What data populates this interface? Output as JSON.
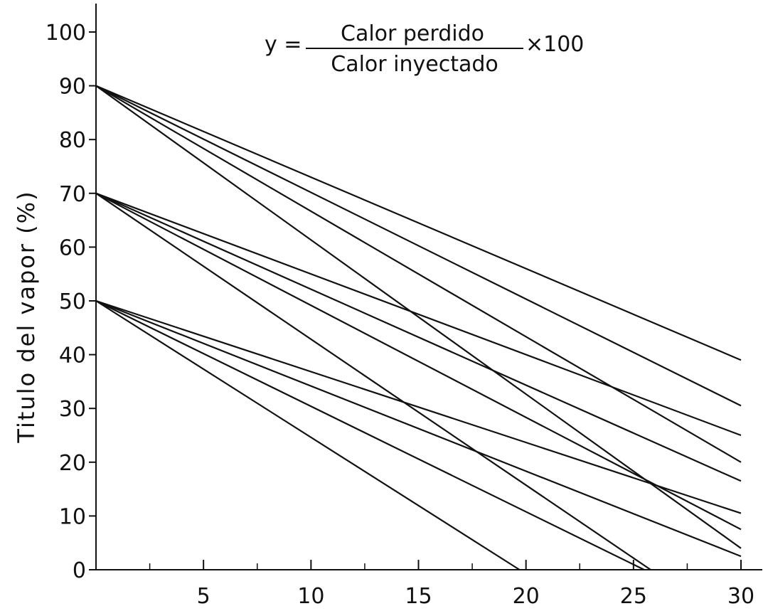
{
  "chart_data": {
    "type": "line",
    "title": "",
    "ylabel": "Titulo del vapor (%)",
    "xlabel": "",
    "xlim": [
      0,
      30
    ],
    "ylim": [
      0,
      100
    ],
    "x_ticks": [
      5,
      10,
      15,
      20,
      25,
      30
    ],
    "y_ticks": [
      0,
      10,
      20,
      30,
      40,
      50,
      60,
      70,
      80,
      90,
      100
    ],
    "grid": false,
    "annotation": {
      "lhs": "y =",
      "numerator": "Calor perdido",
      "denominator": "Calor inyectado",
      "rhs": "×100"
    },
    "series": [
      {
        "x": [
          0,
          30
        ],
        "y": [
          90,
          39
        ]
      },
      {
        "x": [
          0,
          30
        ],
        "y": [
          90,
          30.5
        ]
      },
      {
        "x": [
          0,
          30
        ],
        "y": [
          90,
          20
        ]
      },
      {
        "x": [
          0,
          30
        ],
        "y": [
          90,
          4
        ]
      },
      {
        "x": [
          0,
          30
        ],
        "y": [
          70,
          25
        ]
      },
      {
        "x": [
          0,
          30
        ],
        "y": [
          70,
          16.5
        ]
      },
      {
        "x": [
          0,
          30
        ],
        "y": [
          70,
          7.5
        ]
      },
      {
        "x": [
          0,
          25.8
        ],
        "y": [
          70,
          0
        ]
      },
      {
        "x": [
          0,
          30
        ],
        "y": [
          50,
          10.5
        ]
      },
      {
        "x": [
          0,
          30
        ],
        "y": [
          50,
          2.5
        ]
      },
      {
        "x": [
          0,
          25.5
        ],
        "y": [
          50,
          0
        ]
      },
      {
        "x": [
          0,
          19.7
        ],
        "y": [
          50,
          0
        ]
      }
    ]
  }
}
